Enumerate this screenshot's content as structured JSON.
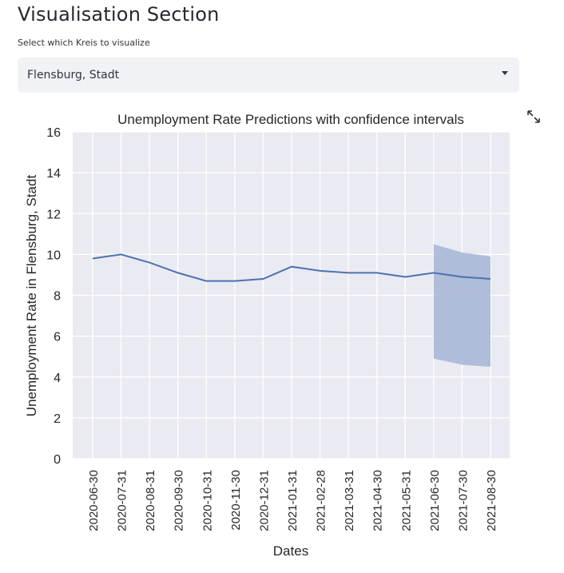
{
  "header": {
    "title": "Visualisation Section"
  },
  "selector": {
    "label": "Select which Kreis to visualize",
    "value": "Flensburg, Stadt"
  },
  "toolbar": {
    "expand_icon": "fullscreen-expand-icon"
  },
  "colors": {
    "line": "#4c72b0",
    "band": "#a4b4d6",
    "plot_bg": "#eaeaf2",
    "grid": "#ffffff"
  },
  "chart_data": {
    "type": "line",
    "title": "Unemployment Rate Predictions with confidence intervals",
    "xlabel": "Dates",
    "ylabel": "Unemployment Rate in Flensburg, Stadt",
    "ylim": [
      0,
      16
    ],
    "yticks": [
      0,
      2,
      4,
      6,
      8,
      10,
      12,
      14,
      16
    ],
    "grid": true,
    "categories": [
      "2020-06-30",
      "2020-07-31",
      "2020-08-31",
      "2020-09-30",
      "2020-10-31",
      "2020-11-30",
      "2020-12-31",
      "2021-01-31",
      "2021-02-28",
      "2021-03-31",
      "2021-04-30",
      "2021-05-31",
      "2021-06-30",
      "2021-07-30",
      "2021-08-30"
    ],
    "series": [
      {
        "values": [
          9.8,
          10.0,
          9.6,
          9.1,
          8.7,
          8.7,
          8.8,
          9.4,
          9.2,
          9.1,
          9.1,
          8.9,
          9.1,
          8.9,
          8.8
        ]
      }
    ],
    "confidence_interval": {
      "x": [
        "2021-06-30",
        "2021-07-30",
        "2021-08-30"
      ],
      "lower": [
        4.9,
        4.6,
        4.5
      ],
      "upper": [
        10.5,
        10.1,
        9.9
      ]
    }
  }
}
